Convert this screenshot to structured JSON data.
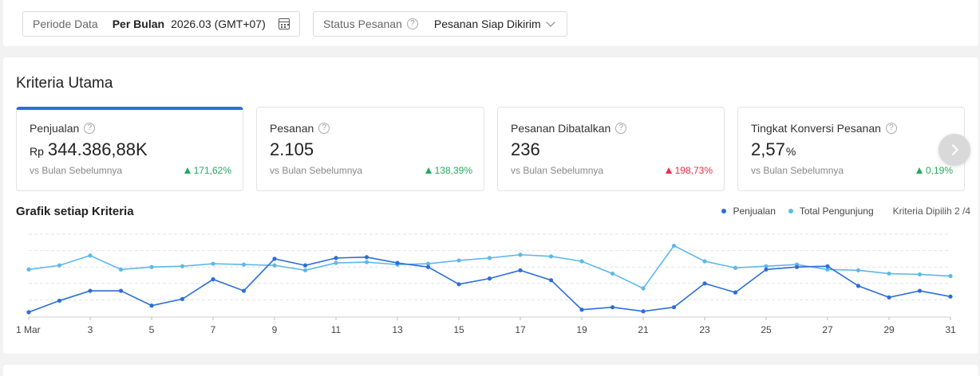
{
  "filters": {
    "period_label": "Periode Data",
    "period_type": "Per Bulan",
    "period_value": "2026.03 (GMT+07)",
    "status_label": "Status Pesanan",
    "status_value": "Pesanan Siap Dikirim"
  },
  "section_title": "Kriteria Utama",
  "metrics": [
    {
      "label": "Penjualan",
      "prefix": "Rp",
      "value": "344.386,88K",
      "suffix": "",
      "sub": "vs Bulan Sebelumnya",
      "change": "171,62%",
      "change_color": "#26aa5d"
    },
    {
      "label": "Pesanan",
      "prefix": "",
      "value": "2.105",
      "suffix": "",
      "sub": "vs Bulan Sebelumnya",
      "change": "138,39%",
      "change_color": "#26aa5d"
    },
    {
      "label": "Pesanan Dibatalkan",
      "prefix": "",
      "value": "236",
      "suffix": "",
      "sub": "vs Bulan Sebelumnya",
      "change": "198,73%",
      "change_color": "#ee2c4a"
    },
    {
      "label": "Tingkat Konversi Pesanan",
      "prefix": "",
      "value": "2,57",
      "suffix": "%",
      "sub": "vs Bulan Sebelumnya",
      "change": "0,19%",
      "change_color": "#26aa5d"
    }
  ],
  "chart": {
    "title": "Grafik setiap Kriteria",
    "legend_penjualan": "Penjualan",
    "legend_pengunjung": "Total Pengunjung",
    "criteria_selected": "Kriteria Dipilih 2 /4"
  },
  "chart_data": {
    "type": "line",
    "x": [
      1,
      2,
      3,
      4,
      5,
      6,
      7,
      8,
      9,
      10,
      11,
      12,
      13,
      14,
      15,
      16,
      17,
      18,
      19,
      20,
      21,
      22,
      23,
      24,
      25,
      26,
      27,
      28,
      29,
      30,
      31
    ],
    "x_tick_labels": [
      "1 Mar",
      "3",
      "5",
      "7",
      "9",
      "11",
      "13",
      "15",
      "17",
      "19",
      "21",
      "23",
      "25",
      "27",
      "29",
      "31"
    ],
    "x_tick_values": [
      1,
      3,
      5,
      7,
      9,
      11,
      13,
      15,
      17,
      19,
      21,
      23,
      25,
      27,
      29,
      31
    ],
    "ylim": [
      0,
      5
    ],
    "grid": true,
    "legend_position": "top-right",
    "series": [
      {
        "name": "Penjualan",
        "color": "#2b6ed8",
        "values": [
          0.25,
          0.95,
          1.55,
          1.55,
          0.65,
          1.05,
          2.25,
          1.55,
          3.5,
          3.1,
          3.55,
          3.6,
          3.25,
          3.0,
          1.95,
          2.3,
          2.8,
          2.2,
          0.4,
          0.55,
          0.3,
          0.55,
          2.0,
          1.45,
          2.85,
          3.0,
          3.05,
          1.85,
          1.15,
          1.55,
          1.2
        ]
      },
      {
        "name": "Total Pengunjung",
        "color": "#5db8ea",
        "values": [
          2.85,
          3.1,
          3.7,
          2.85,
          3.0,
          3.05,
          3.2,
          3.15,
          3.1,
          2.8,
          3.25,
          3.3,
          3.15,
          3.2,
          3.4,
          3.55,
          3.75,
          3.65,
          3.35,
          2.6,
          1.7,
          4.3,
          3.35,
          2.95,
          3.05,
          3.15,
          2.85,
          2.8,
          2.6,
          2.55,
          2.45
        ]
      }
    ]
  }
}
